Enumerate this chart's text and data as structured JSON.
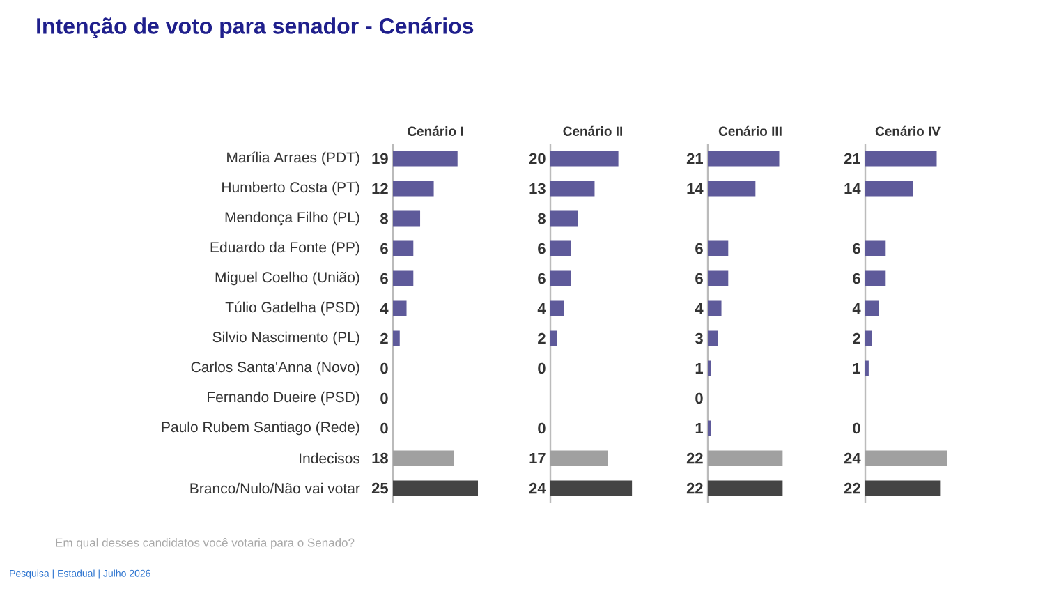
{
  "chart_data": [
    {
      "type": "bar",
      "orientation": "horizontal",
      "title": "Cenário I",
      "categories": [
        "Marília Arraes (PDT)",
        "Humberto Costa (PT)",
        "Mendonça Filho (PL)",
        "Eduardo da Fonte (PP)",
        "Miguel Coelho (União)",
        "Túlio Gadelha (PSD)",
        "Silvio Nascimento (PL)",
        "Carlos Santa'Anna (Novo)",
        "Fernando Dueire (PSD)",
        "Paulo Rubem Santiago (Rede)",
        "Indecisos",
        "Branco/Nulo/Não vai votar"
      ],
      "values": [
        19,
        12,
        8,
        6,
        6,
        4,
        2,
        0,
        0,
        0,
        18,
        25
      ],
      "colors": [
        "#5e5a9a",
        "#5e5a9a",
        "#5e5a9a",
        "#5e5a9a",
        "#5e5a9a",
        "#5e5a9a",
        "#5e5a9a",
        "#5e5a9a",
        "#5e5a9a",
        "#5e5a9a",
        "#a0a0a0",
        "#444444"
      ],
      "data_labels": true,
      "tick_labels": "y",
      "annotations": [
        "Intenção de voto para senador - Cenários",
        "Em qual desses candidatos você votaria para o Senado?",
        "Pesquisa | Estadual | Julho 2026"
      ]
    },
    {
      "type": "bar",
      "orientation": "horizontal",
      "title": "Cenário II",
      "categories": [
        null,
        null,
        null,
        null,
        null,
        null,
        null,
        null,
        null,
        null,
        null,
        null
      ],
      "values": [
        20,
        13,
        8,
        6,
        6,
        4,
        2,
        0,
        null,
        0,
        17,
        24
      ],
      "colors": [
        "#5e5a9a",
        "#5e5a9a",
        "#5e5a9a",
        "#5e5a9a",
        "#5e5a9a",
        "#5e5a9a",
        "#5e5a9a",
        "#5e5a9a",
        "#5e5a9a",
        "#5e5a9a",
        "#a0a0a0",
        "#444444"
      ],
      "data_labels": true,
      "tick_labels": false
    },
    {
      "type": "bar",
      "orientation": "horizontal",
      "title": "Cenário III",
      "categories": [
        null,
        null,
        null,
        null,
        null,
        null,
        null,
        null,
        null,
        null,
        null,
        null
      ],
      "values": [
        21,
        14,
        null,
        6,
        6,
        4,
        3,
        1,
        0,
        1,
        22,
        22
      ],
      "colors": [
        "#5e5a9a",
        "#5e5a9a",
        "#5e5a9a",
        "#5e5a9a",
        "#5e5a9a",
        "#5e5a9a",
        "#5e5a9a",
        "#5e5a9a",
        "#5e5a9a",
        "#5e5a9a",
        "#a0a0a0",
        "#444444"
      ],
      "data_labels": true,
      "tick_labels": false
    },
    {
      "type": "bar",
      "orientation": "horizontal",
      "title": "Cenário IV",
      "categories": [
        null,
        null,
        null,
        null,
        null,
        null,
        null,
        null,
        null,
        null,
        null,
        null
      ],
      "values": [
        21,
        14,
        null,
        6,
        6,
        4,
        2,
        1,
        null,
        0,
        24,
        22
      ],
      "colors": [
        "#5e5a9a",
        "#5e5a9a",
        "#5e5a9a",
        "#5e5a9a",
        "#5e5a9a",
        "#5e5a9a",
        "#5e5a9a",
        "#5e5a9a",
        "#5e5a9a",
        "#5e5a9a",
        "#a0a0a0",
        "#444444"
      ],
      "data_labels": true,
      "tick_labels": false
    }
  ]
}
